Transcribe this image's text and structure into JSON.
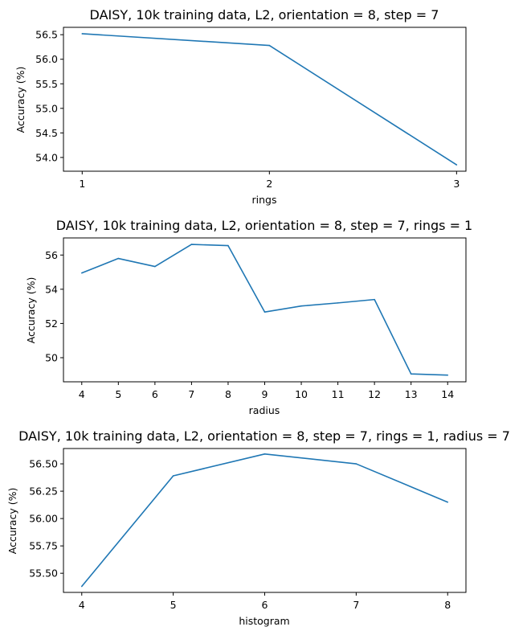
{
  "chart_data": [
    {
      "type": "line",
      "title": "DAISY, 10k training data, L2, orientation = 8, step = 7",
      "xlabel": "rings",
      "ylabel": "Accuracy (%)",
      "x": [
        1,
        2,
        3
      ],
      "values": [
        56.52,
        56.28,
        53.85
      ],
      "xlim": [
        0.9,
        3.05
      ],
      "ylim": [
        53.72,
        56.65
      ],
      "xticks": [
        1,
        2,
        3
      ],
      "yticks": [
        54.0,
        54.5,
        55.0,
        55.5,
        56.0,
        56.5
      ],
      "ytick_labels": [
        "54.0",
        "54.5",
        "55.0",
        "55.5",
        "56.0",
        "56.5"
      ],
      "grid": false,
      "color": "#1f77b4"
    },
    {
      "type": "line",
      "title": "DAISY, 10k training data, L2, orientation = 8, step = 7, rings = 1",
      "xlabel": "radius",
      "ylabel": "Accuracy (%)",
      "x": [
        4,
        5,
        6,
        7,
        8,
        9,
        10,
        11,
        12,
        13,
        14
      ],
      "values": [
        54.95,
        55.8,
        55.33,
        56.62,
        56.55,
        52.67,
        53.02,
        53.2,
        53.4,
        49.05,
        48.98
      ],
      "xlim": [
        3.5,
        14.5
      ],
      "ylim": [
        48.59,
        57.0
      ],
      "xticks": [
        4,
        5,
        6,
        7,
        8,
        9,
        10,
        11,
        12,
        13,
        14
      ],
      "yticks": [
        50,
        52,
        54,
        56
      ],
      "ytick_labels": [
        "50",
        "52",
        "54",
        "56"
      ],
      "grid": false,
      "color": "#1f77b4"
    },
    {
      "type": "line",
      "title": "DAISY, 10k training data, L2, orientation = 8, step = 7, rings = 1, radius = 7",
      "xlabel": "histogram",
      "ylabel": "Accuracy (%)",
      "x": [
        4,
        5,
        6,
        7,
        8
      ],
      "values": [
        55.38,
        56.39,
        56.59,
        56.5,
        56.15
      ],
      "xlim": [
        3.8,
        8.2
      ],
      "ylim": [
        55.325,
        56.64
      ],
      "xticks": [
        4,
        5,
        6,
        7,
        8
      ],
      "yticks": [
        55.5,
        55.75,
        56.0,
        56.25,
        56.5
      ],
      "ytick_labels": [
        "55.50",
        "55.75",
        "56.00",
        "56.25",
        "56.50"
      ],
      "grid": false,
      "color": "#1f77b4"
    }
  ]
}
